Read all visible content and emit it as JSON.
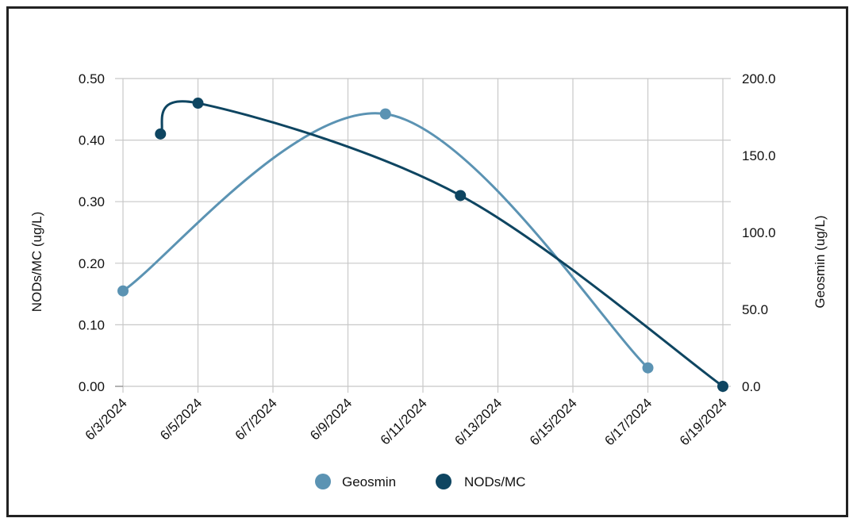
{
  "chart_data": {
    "type": "line",
    "title": "",
    "xlabel": "",
    "x_ticks": [
      "6/3/2024",
      "6/5/2024",
      "6/7/2024",
      "6/9/2024",
      "6/11/2024",
      "6/13/2024",
      "6/15/2024",
      "6/17/2024",
      "6/19/2024"
    ],
    "x_range": [
      "6/3/2024",
      "6/19/2024"
    ],
    "y_left": {
      "label": "NODs/MC (ug/L)",
      "range": [
        0,
        0.5
      ],
      "ticks": [
        "0.00",
        "0.10",
        "0.20",
        "0.30",
        "0.40",
        "0.50"
      ]
    },
    "y_right": {
      "label": "Geosmin (ug/L)",
      "range": [
        0,
        200
      ],
      "ticks": [
        "0.0",
        "50.0",
        "100.0",
        "150.0",
        "200.0"
      ]
    },
    "grid": true,
    "legend_position": "bottom",
    "series": [
      {
        "name": "Geosmin",
        "axis": "right",
        "color": "#5b93b3",
        "points": [
          {
            "x": "6/3/2024",
            "y": 62
          },
          {
            "x": "6/10/2024",
            "y": 177
          },
          {
            "x": "6/17/2024",
            "y": 12
          }
        ]
      },
      {
        "name": "NODs/MC",
        "axis": "left",
        "color": "#0e4561",
        "points": [
          {
            "x": "6/4/2024",
            "y": 0.41
          },
          {
            "x": "6/5/2024",
            "y": 0.46
          },
          {
            "x": "6/12/2024",
            "y": 0.31
          },
          {
            "x": "6/19/2024",
            "y": 0.0
          }
        ]
      }
    ]
  }
}
